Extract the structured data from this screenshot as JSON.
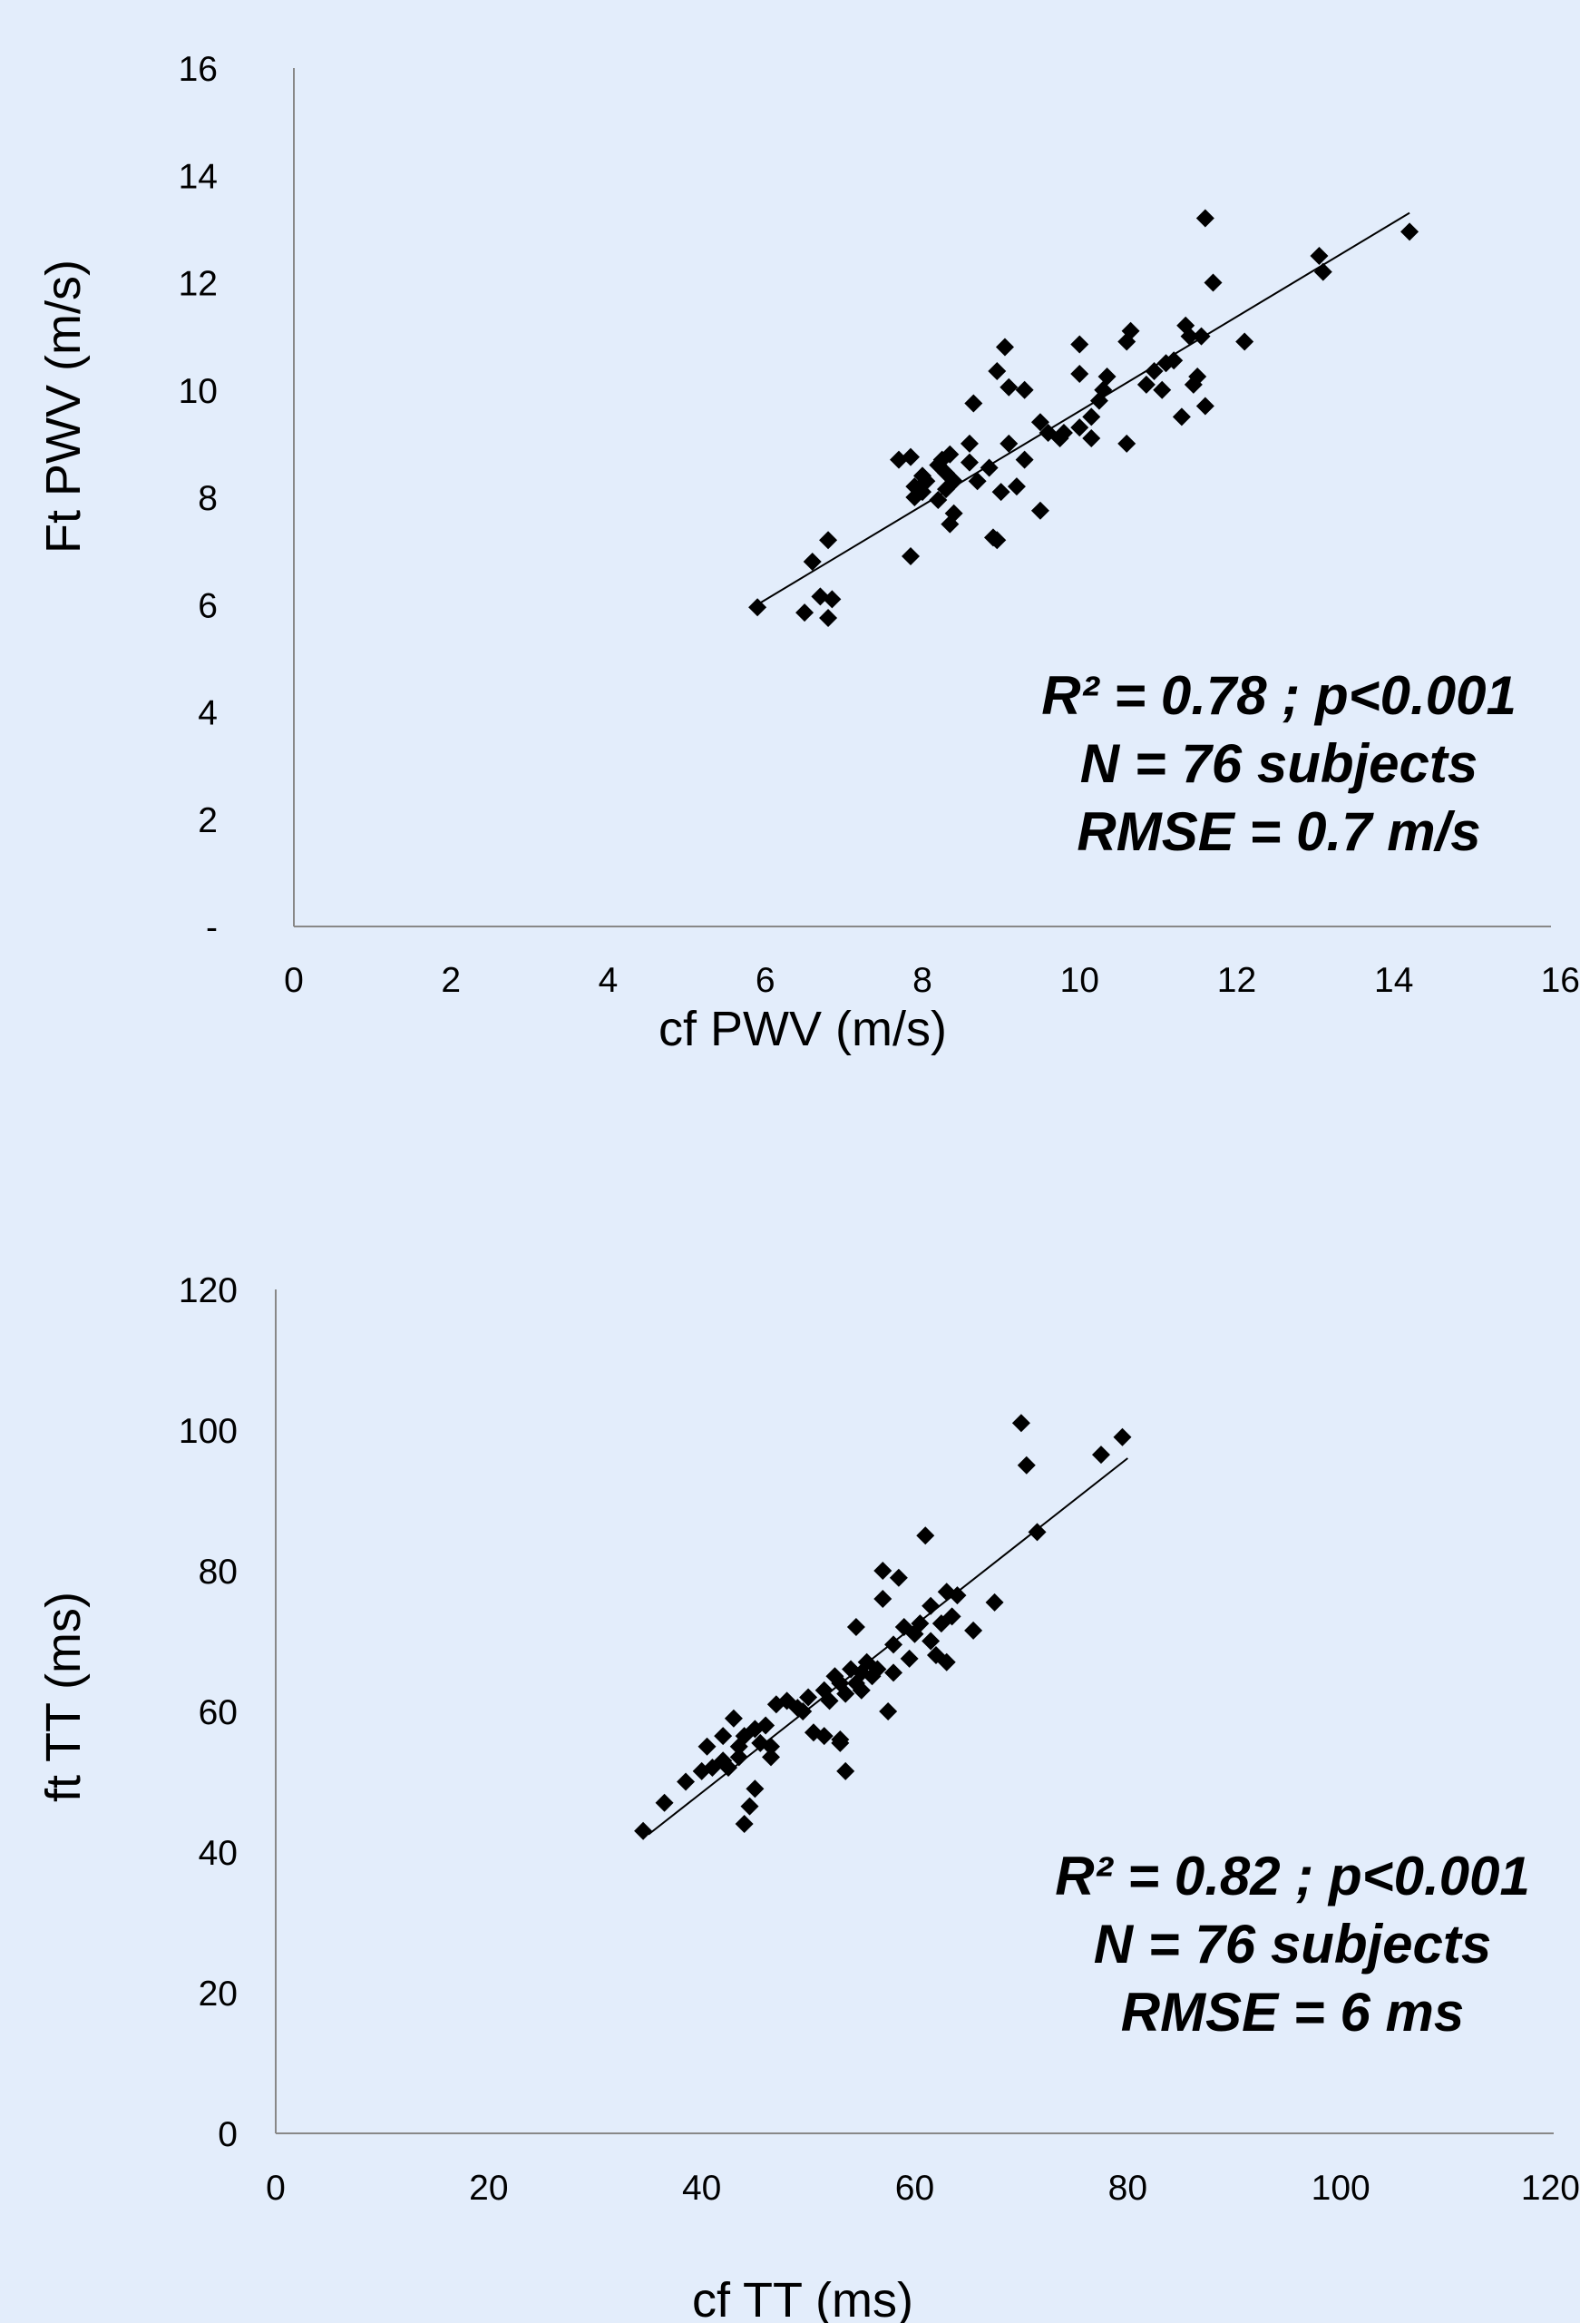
{
  "colors": {
    "background": "#e3edfb",
    "marker": "#000000",
    "axis": "#888888",
    "trendline": "#000000"
  },
  "chart_data": [
    {
      "type": "scatter",
      "xlabel": "cf PWV (m/s)",
      "ylabel": "Ft PWV (m/s)",
      "xlim": [
        0,
        16
      ],
      "ylim": [
        0,
        16
      ],
      "x_ticks": [
        "0",
        "2",
        "4",
        "6",
        "8",
        "10",
        "12",
        "14",
        "16"
      ],
      "y_ticks": [
        "-",
        "2",
        "4",
        "6",
        "8",
        "10",
        "12",
        "14",
        "16"
      ],
      "grid": false,
      "marker": "diamond",
      "annotation": [
        "R² = 0.78 ; p<0.001",
        "N = 76 subjects",
        "RMSE = 0.7 m/s"
      ],
      "trendline": [
        [
          5.9,
          6.0
        ],
        [
          14.2,
          13.3
        ]
      ],
      "points": [
        [
          5.9,
          5.95
        ],
        [
          6.5,
          5.85
        ],
        [
          6.6,
          6.8
        ],
        [
          6.7,
          6.15
        ],
        [
          6.8,
          5.75
        ],
        [
          6.8,
          7.2
        ],
        [
          6.85,
          6.1
        ],
        [
          7.7,
          8.7
        ],
        [
          7.85,
          6.9
        ],
        [
          7.85,
          8.75
        ],
        [
          7.9,
          8.0
        ],
        [
          7.9,
          8.2
        ],
        [
          8.0,
          8.4
        ],
        [
          8.0,
          8.1
        ],
        [
          8.05,
          8.3
        ],
        [
          8.2,
          8.6
        ],
        [
          8.2,
          7.95
        ],
        [
          8.25,
          8.7
        ],
        [
          8.3,
          8.15
        ],
        [
          8.3,
          8.45
        ],
        [
          8.35,
          8.8
        ],
        [
          8.35,
          7.5
        ],
        [
          8.4,
          7.7
        ],
        [
          8.4,
          8.3
        ],
        [
          8.6,
          9.0
        ],
        [
          8.6,
          8.65
        ],
        [
          8.65,
          9.75
        ],
        [
          8.7,
          8.3
        ],
        [
          8.85,
          8.55
        ],
        [
          8.9,
          7.25
        ],
        [
          8.95,
          7.2
        ],
        [
          8.95,
          10.35
        ],
        [
          9.0,
          8.1
        ],
        [
          9.05,
          10.8
        ],
        [
          9.1,
          9.0
        ],
        [
          9.1,
          10.05
        ],
        [
          9.2,
          8.2
        ],
        [
          9.3,
          10.0
        ],
        [
          9.3,
          8.7
        ],
        [
          9.5,
          7.75
        ],
        [
          9.5,
          9.4
        ],
        [
          9.6,
          9.2
        ],
        [
          9.75,
          9.1
        ],
        [
          9.8,
          9.2
        ],
        [
          10.0,
          9.3
        ],
        [
          10.0,
          10.3
        ],
        [
          10.0,
          10.85
        ],
        [
          10.15,
          9.1
        ],
        [
          10.15,
          9.5
        ],
        [
          10.25,
          9.8
        ],
        [
          10.3,
          10.0
        ],
        [
          10.35,
          10.25
        ],
        [
          10.6,
          9.0
        ],
        [
          10.6,
          10.9
        ],
        [
          10.65,
          11.1
        ],
        [
          10.85,
          10.1
        ],
        [
          10.95,
          10.35
        ],
        [
          11.05,
          10.0
        ],
        [
          11.1,
          10.5
        ],
        [
          11.2,
          10.55
        ],
        [
          11.3,
          9.5
        ],
        [
          11.35,
          11.2
        ],
        [
          11.4,
          11.0
        ],
        [
          11.45,
          10.1
        ],
        [
          11.5,
          10.25
        ],
        [
          11.55,
          11.0
        ],
        [
          11.6,
          13.2
        ],
        [
          11.6,
          9.7
        ],
        [
          11.7,
          12.0
        ],
        [
          12.1,
          10.9
        ],
        [
          13.05,
          12.5
        ],
        [
          13.1,
          12.2
        ],
        [
          14.2,
          12.95
        ]
      ]
    },
    {
      "type": "scatter",
      "xlabel": "cf TT (ms)",
      "ylabel": "ft TT (ms)",
      "xlim": [
        0,
        120
      ],
      "ylim": [
        0,
        120
      ],
      "x_ticks": [
        "0",
        "20",
        "40",
        "60",
        "80",
        "100",
        "120"
      ],
      "y_ticks": [
        "0",
        "20",
        "40",
        "60",
        "80",
        "100",
        "120"
      ],
      "grid": false,
      "marker": "diamond",
      "annotation": [
        "R² = 0.82 ; p<0.001",
        "N = 76 subjects",
        "RMSE =  6 ms"
      ],
      "trendline": [
        [
          35,
          42.5
        ],
        [
          80,
          96
        ]
      ],
      "points": [
        [
          34.5,
          43
        ],
        [
          36.5,
          47
        ],
        [
          38.5,
          50
        ],
        [
          40,
          51.5
        ],
        [
          40.5,
          55
        ],
        [
          41,
          52
        ],
        [
          42,
          53
        ],
        [
          42,
          56.5
        ],
        [
          42.5,
          52
        ],
        [
          43,
          59
        ],
        [
          43.5,
          53.5
        ],
        [
          43.5,
          55
        ],
        [
          44,
          44
        ],
        [
          44,
          56.5
        ],
        [
          44.5,
          46.5
        ],
        [
          45,
          49
        ],
        [
          45,
          57.5
        ],
        [
          45.5,
          55.5
        ],
        [
          46,
          58
        ],
        [
          46.5,
          53.5
        ],
        [
          46.5,
          55
        ],
        [
          47,
          61
        ],
        [
          48,
          61.5
        ],
        [
          49,
          60.5
        ],
        [
          49.5,
          60
        ],
        [
          50,
          62
        ],
        [
          50.5,
          57
        ],
        [
          51.5,
          56.5
        ],
        [
          51.5,
          63
        ],
        [
          52,
          61.5
        ],
        [
          52.5,
          65
        ],
        [
          53,
          55.5
        ],
        [
          53,
          56
        ],
        [
          53,
          64
        ],
        [
          53.5,
          51.5
        ],
        [
          53.5,
          62.5
        ],
        [
          54,
          66
        ],
        [
          54.5,
          64
        ],
        [
          54.5,
          72
        ],
        [
          55,
          63
        ],
        [
          55,
          65.5
        ],
        [
          55.5,
          67
        ],
        [
          56,
          65
        ],
        [
          56.5,
          66
        ],
        [
          57,
          80
        ],
        [
          57,
          76
        ],
        [
          57.5,
          60
        ],
        [
          58,
          65.5
        ],
        [
          58,
          69.5
        ],
        [
          58.5,
          79
        ],
        [
          59,
          72
        ],
        [
          59.5,
          67.5
        ],
        [
          60,
          71
        ],
        [
          60.5,
          72.5
        ],
        [
          61,
          85
        ],
        [
          61.5,
          70
        ],
        [
          61.5,
          75
        ],
        [
          62,
          68
        ],
        [
          62.5,
          72.5
        ],
        [
          63,
          67
        ],
        [
          63,
          77
        ],
        [
          63.5,
          73.5
        ],
        [
          64,
          76.5
        ],
        [
          65.5,
          71.5
        ],
        [
          67.5,
          75.5
        ],
        [
          70,
          101
        ],
        [
          70.5,
          95
        ],
        [
          71.5,
          85.5
        ],
        [
          77.5,
          96.5
        ],
        [
          79.5,
          99
        ]
      ]
    }
  ]
}
